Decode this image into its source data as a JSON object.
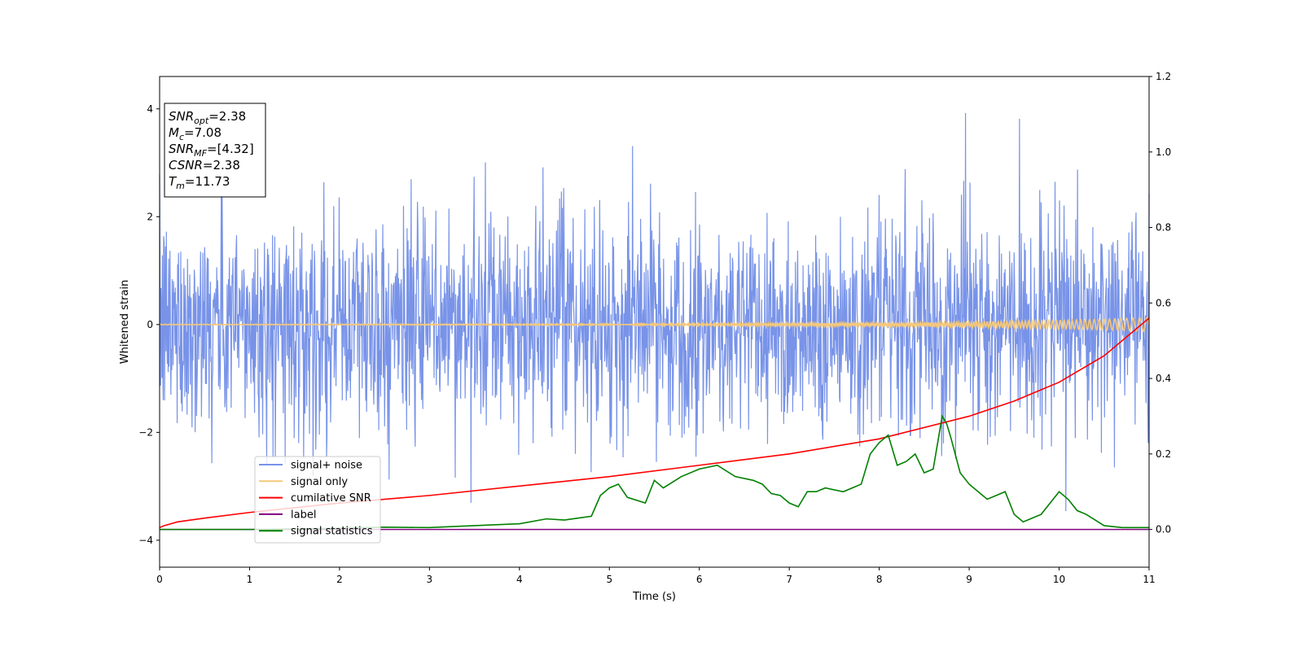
{
  "chart_data": {
    "type": "line",
    "xlabel": "Time (s)",
    "ylabel": "Whitened strain",
    "xlim": [
      0,
      11
    ],
    "ylim_left": [
      -4.5,
      4.6
    ],
    "ylim_right": [
      -0.1,
      1.2
    ],
    "xticks": [
      0,
      1,
      2,
      3,
      4,
      5,
      6,
      7,
      8,
      9,
      10,
      11
    ],
    "yticks_left": [
      -4,
      -2,
      0,
      2,
      4
    ],
    "yticks_right": [
      "0.0",
      "0.2",
      "0.4",
      "0.6",
      "0.8",
      "1.0",
      "1.2"
    ],
    "grid": false,
    "legend_position": "lower-left",
    "legend": [
      {
        "label": "signal+ noise",
        "color": "#7893e8"
      },
      {
        "label": "signal only",
        "color": "#f5c87a"
      },
      {
        "label": "cumilative SNR",
        "color": "#ff0000"
      },
      {
        "label": "label",
        "color": "#800080"
      },
      {
        "label": "signal statistics",
        "color": "#008000"
      }
    ],
    "annotation": [
      {
        "base": "SNR",
        "sub": "opt",
        "rest": "=2.38"
      },
      {
        "base": "M",
        "sub": "c",
        "rest": "=7.08"
      },
      {
        "base": "SNR",
        "sub": "MF",
        "rest": "=[4.32]"
      },
      {
        "base": "CSNR",
        "sub": "",
        "rest": "=2.38"
      },
      {
        "base": "T",
        "sub": "m",
        "rest": "=11.73"
      }
    ],
    "series": [
      {
        "name": "signal+ noise",
        "axis": "left",
        "color": "#7893e8",
        "noise_std": 1.0,
        "n_samples": 2200
      },
      {
        "name": "signal only",
        "axis": "left",
        "color": "#f5c87a",
        "x": [
          0,
          5,
          8,
          9,
          10,
          10.5,
          11
        ],
        "amplitude": [
          0.005,
          0.01,
          0.03,
          0.05,
          0.08,
          0.1,
          0.13
        ]
      },
      {
        "name": "cumilative SNR",
        "axis": "right",
        "color": "#ff0000",
        "x": [
          0,
          0.05,
          0.2,
          0.5,
          1,
          2,
          3,
          4,
          5,
          6,
          7,
          8,
          9,
          9.5,
          10,
          10.5,
          10.8,
          11
        ],
        "y": [
          0.005,
          0.01,
          0.02,
          0.03,
          0.045,
          0.07,
          0.09,
          0.115,
          0.14,
          0.17,
          0.2,
          0.24,
          0.3,
          0.34,
          0.39,
          0.46,
          0.52,
          0.56
        ]
      },
      {
        "name": "label",
        "axis": "right",
        "color": "#800080",
        "x": [
          0,
          11
        ],
        "y": [
          0,
          0
        ]
      },
      {
        "name": "signal statistics",
        "axis": "right",
        "color": "#008000",
        "x": [
          0,
          1,
          2,
          2.5,
          3,
          3.5,
          4,
          4.3,
          4.5,
          4.8,
          4.9,
          5.0,
          5.1,
          5.2,
          5.4,
          5.5,
          5.6,
          5.8,
          6.0,
          6.2,
          6.4,
          6.6,
          6.7,
          6.8,
          6.9,
          7.0,
          7.1,
          7.2,
          7.3,
          7.4,
          7.6,
          7.7,
          7.8,
          7.9,
          8.0,
          8.1,
          8.2,
          8.3,
          8.4,
          8.5,
          8.6,
          8.7,
          8.75,
          8.8,
          8.9,
          9.0,
          9.1,
          9.2,
          9.3,
          9.4,
          9.5,
          9.6,
          9.7,
          9.8,
          9.9,
          10.0,
          10.1,
          10.2,
          10.3,
          10.5,
          10.7,
          11
        ],
        "y": [
          0.0,
          0.0,
          0.003,
          0.006,
          0.005,
          0.01,
          0.015,
          0.028,
          0.025,
          0.035,
          0.09,
          0.11,
          0.12,
          0.085,
          0.07,
          0.13,
          0.11,
          0.14,
          0.16,
          0.17,
          0.14,
          0.13,
          0.12,
          0.095,
          0.09,
          0.07,
          0.06,
          0.1,
          0.1,
          0.11,
          0.1,
          0.11,
          0.12,
          0.2,
          0.23,
          0.25,
          0.17,
          0.18,
          0.2,
          0.15,
          0.16,
          0.3,
          0.28,
          0.24,
          0.15,
          0.12,
          0.1,
          0.08,
          0.09,
          0.1,
          0.04,
          0.02,
          0.03,
          0.04,
          0.07,
          0.1,
          0.08,
          0.05,
          0.04,
          0.01,
          0.005,
          0.005
        ]
      }
    ]
  }
}
